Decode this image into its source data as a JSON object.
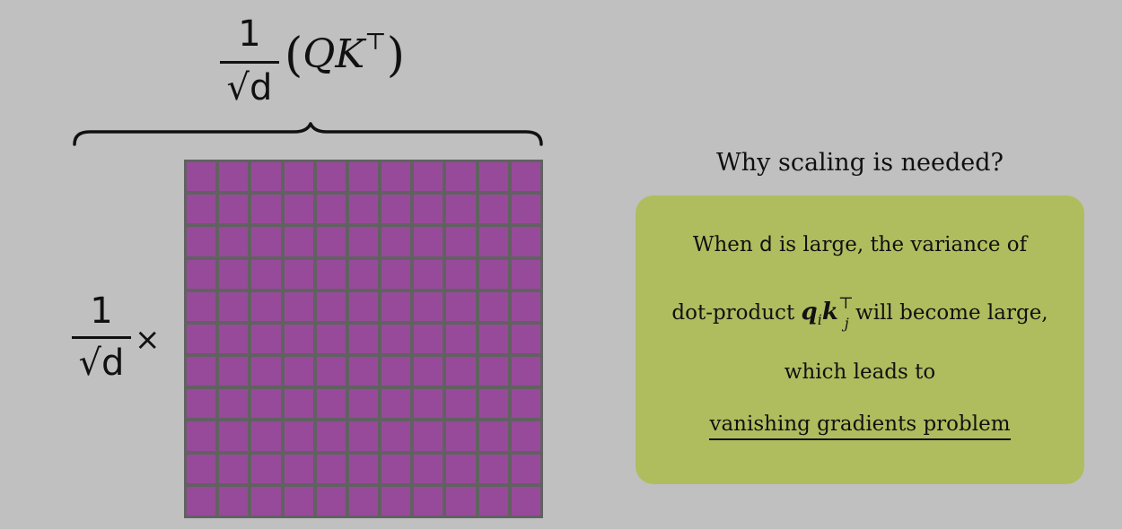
{
  "top_formula": {
    "numerator": "1",
    "denominator": "√d",
    "expression_open": "(",
    "expression_q": "Q",
    "expression_k": "K",
    "expression_sup": "⊤",
    "expression_close": ")"
  },
  "left_formula": {
    "numerator": "1",
    "denominator": "√d",
    "times": "×"
  },
  "matrix": {
    "rows": 11,
    "cols": 11,
    "cell_color": "#974a9a",
    "grid_color": "#616161"
  },
  "why": {
    "title": "Why scaling is needed?",
    "box_color": "#afbd5e",
    "line1_pre": "When ",
    "line1_d": "d",
    "line1_post": " is large, the variance of",
    "line2_pre": "dot-product ",
    "line2_q": "q",
    "line2_i": "i",
    "line2_k": "k",
    "line2_j": "j",
    "line2_sup": "⊤",
    "line2_post": " will become large,",
    "line3": "which leads to",
    "line4": "vanishing gradients problem"
  }
}
